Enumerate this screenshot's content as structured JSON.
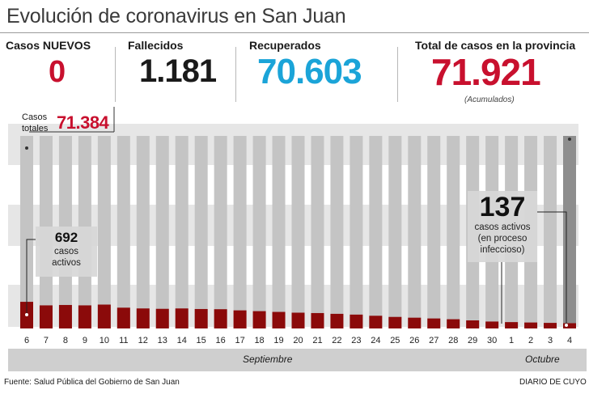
{
  "title": "Evolución de coronavirus en San Juan",
  "stats": {
    "nuevos": {
      "label": "Casos NUEVOS",
      "value": "0"
    },
    "fallecidos": {
      "label": "Fallecidos",
      "value": "1.181"
    },
    "recuperados": {
      "label": "Recuperados",
      "value": "70.603"
    },
    "total": {
      "label": "Total de casos en la provincia",
      "value": "71.921",
      "note": "(Acumulados)"
    }
  },
  "colors": {
    "red": "#c8102e",
    "blue": "#1ba4d8",
    "dark": "#1a1a1a",
    "bar_total": "#c4c4c4",
    "bar_active": "#8b0a0a",
    "bar_last": "#8e8e8e",
    "band": "#e6e6e6"
  },
  "casos_totales": {
    "label_line1": "Casos",
    "label_line2": "totales",
    "value": "71.384"
  },
  "annotations": {
    "left": {
      "number": "692",
      "line1": "casos",
      "line2": "activos"
    },
    "right": {
      "number": "137",
      "line1": "casos activos",
      "line2": "(en proceso",
      "line3": "infeccioso)"
    }
  },
  "months": {
    "september": "Septiembre",
    "october": "Octubre"
  },
  "footer": {
    "source": "Fuente: Salud Pública del Gobierno de San Juan",
    "credit": "DIARIO DE CUYO"
  },
  "chart_data": {
    "type": "bar",
    "categories": [
      "6",
      "7",
      "8",
      "9",
      "10",
      "11",
      "12",
      "13",
      "14",
      "15",
      "16",
      "17",
      "18",
      "19",
      "20",
      "21",
      "22",
      "23",
      "24",
      "25",
      "26",
      "27",
      "28",
      "29",
      "30",
      "1",
      "2",
      "3",
      "4"
    ],
    "series": [
      {
        "values": [
          71384,
          71420,
          71455,
          71490,
          71520,
          71550,
          71575,
          71600,
          71620,
          71640,
          71660,
          71680,
          71700,
          71720,
          71740,
          71755,
          71770,
          71785,
          71800,
          71815,
          71830,
          71845,
          71858,
          71870,
          71882,
          71893,
          71903,
          71912,
          71921
        ]
      },
      {
        "values": [
          692,
          600,
          610,
          600,
          620,
          540,
          520,
          510,
          520,
          505,
          500,
          470,
          450,
          430,
          410,
          400,
          380,
          360,
          330,
          300,
          280,
          260,
          240,
          210,
          180,
          165,
          155,
          145,
          137
        ]
      }
    ],
    "ylim_active": [
      0,
      5000
    ],
    "grid": false
  }
}
